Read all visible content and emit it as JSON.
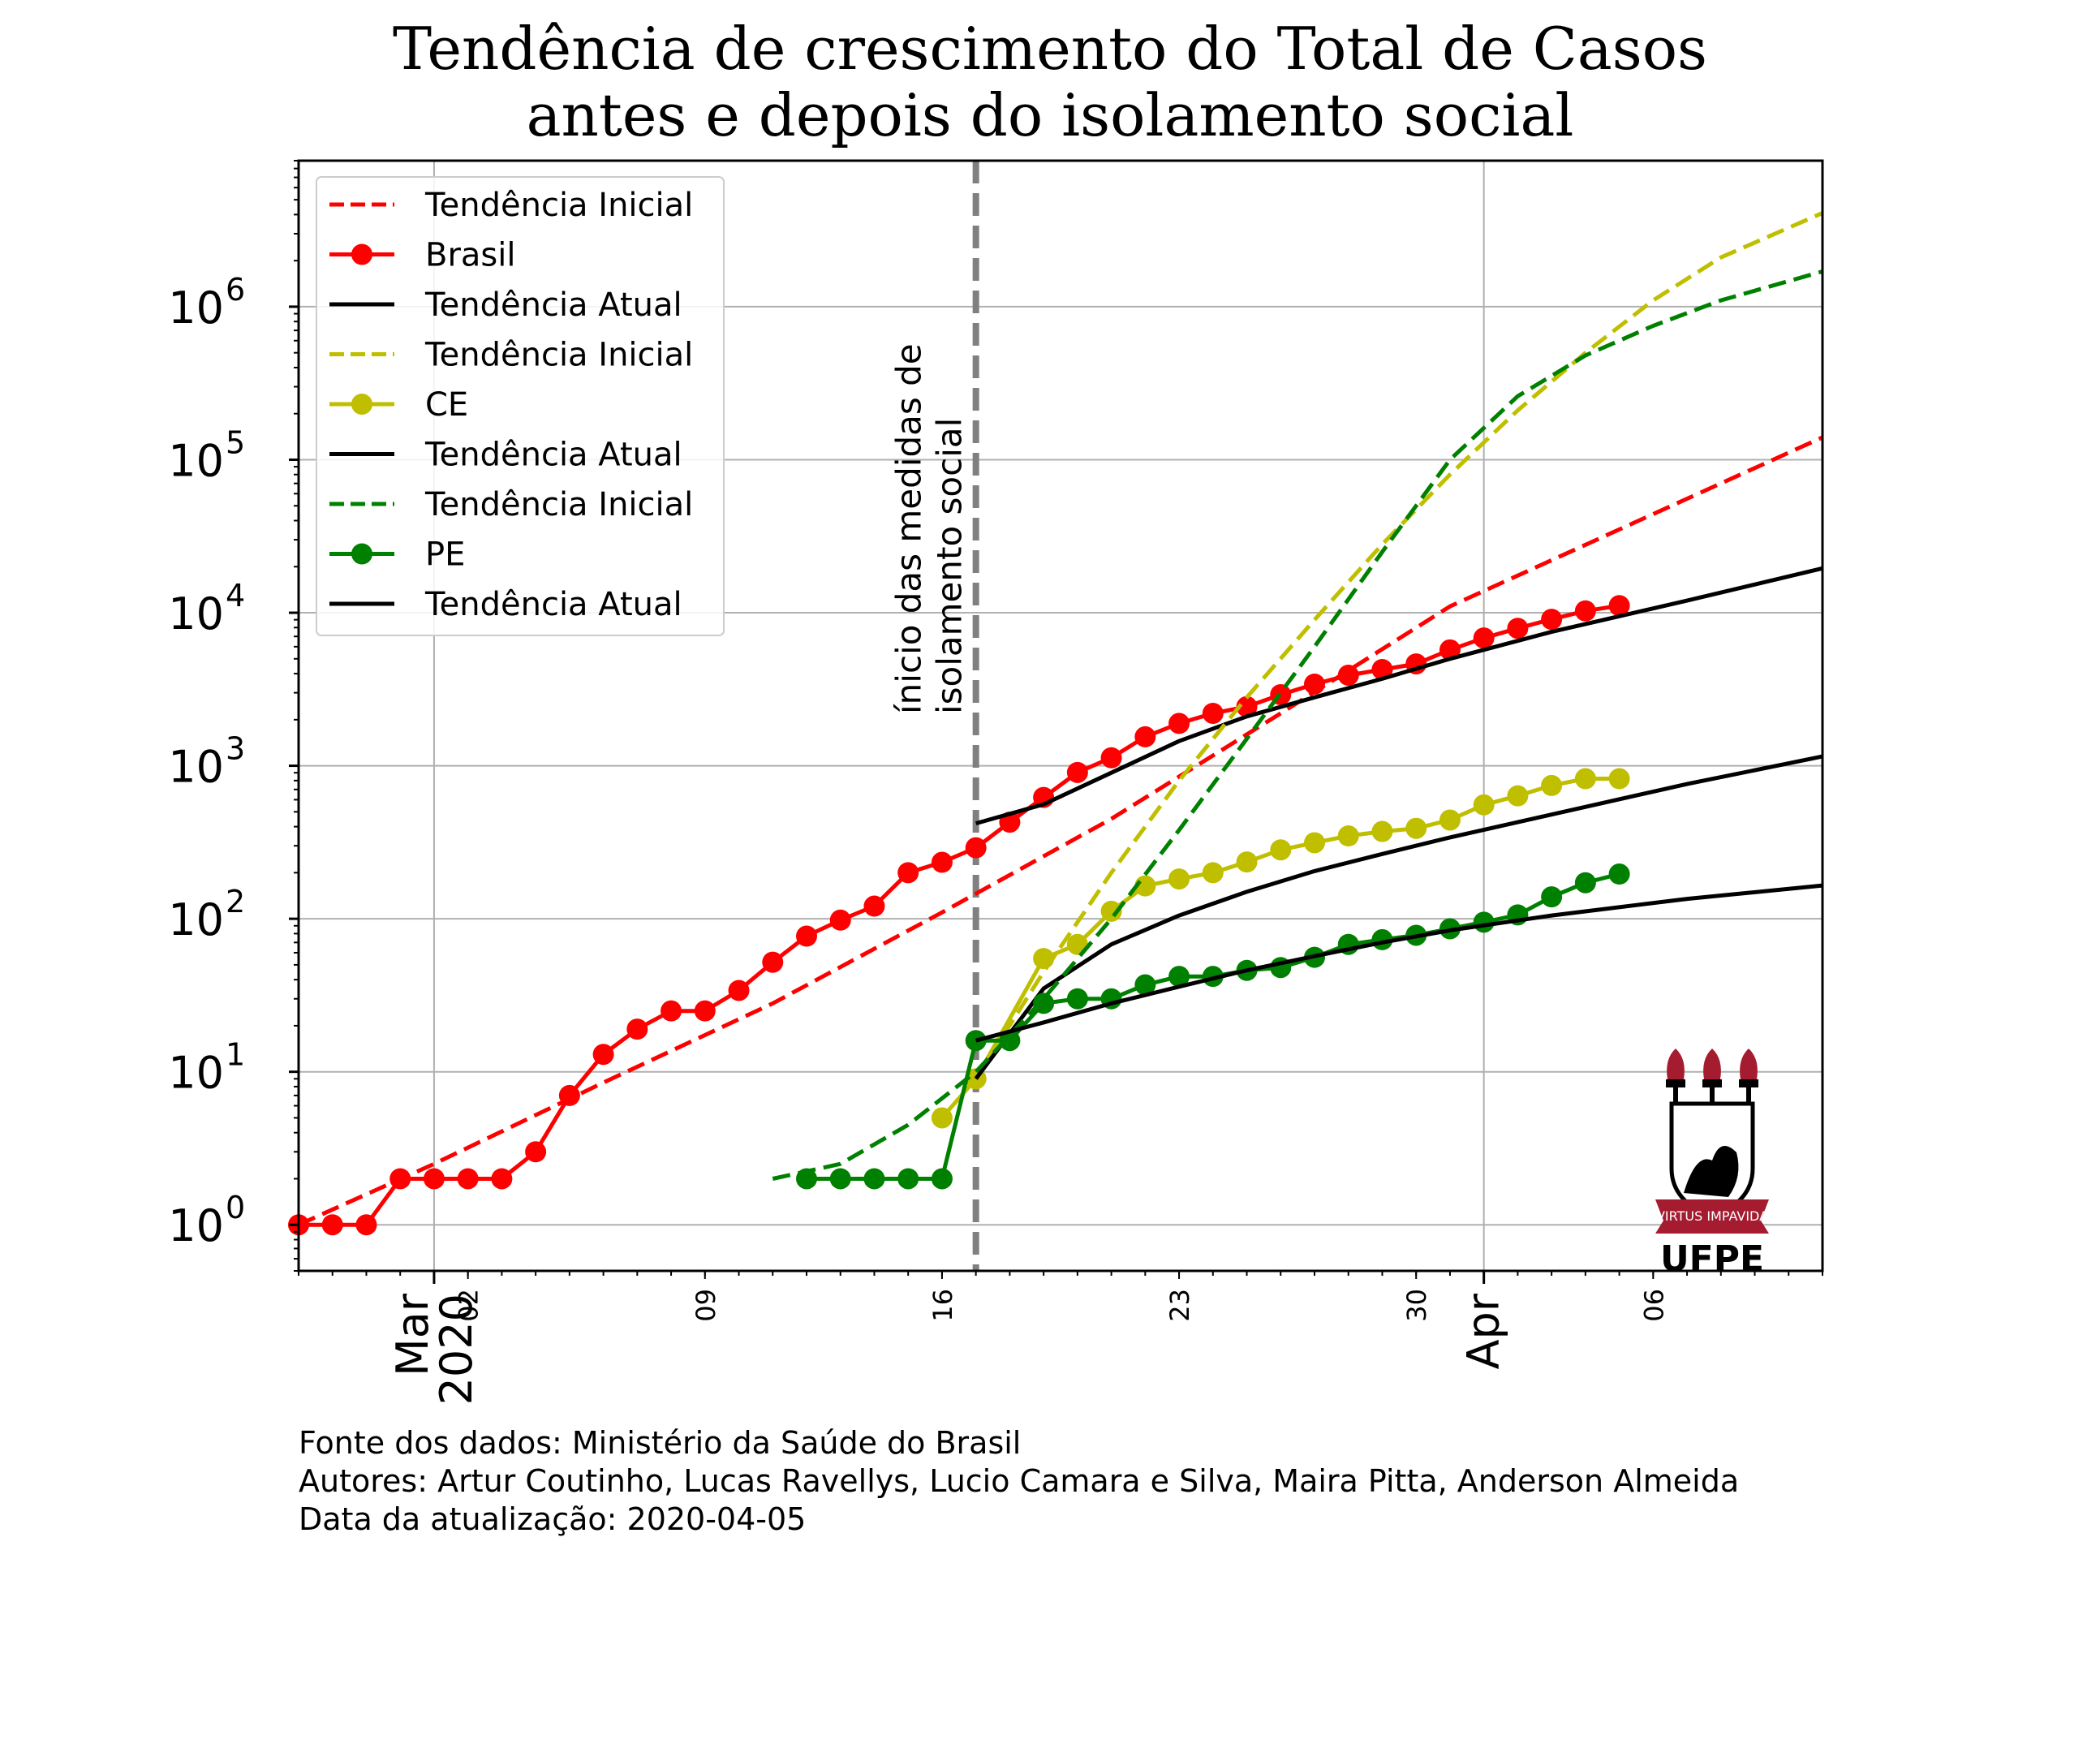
{
  "chart_data": {
    "type": "line",
    "title": [
      "Tendência de crescimento do Total de Casos",
      "antes e depois do isolamento social"
    ],
    "xlabel": "",
    "ylabel": "",
    "yscale": "log",
    "grid": true,
    "legend_placement": "top-left",
    "x_range": [
      "2020-02-26",
      "2020-04-11"
    ],
    "ylim": [
      0.5,
      9000000
    ],
    "y_ticks": [
      {
        "value": 1,
        "base": "10",
        "exp": "0"
      },
      {
        "value": 10,
        "base": "10",
        "exp": "1"
      },
      {
        "value": 100,
        "base": "10",
        "exp": "2"
      },
      {
        "value": 1000,
        "base": "10",
        "exp": "3"
      },
      {
        "value": 10000,
        "base": "10",
        "exp": "4"
      },
      {
        "value": 100000,
        "base": "10",
        "exp": "5"
      },
      {
        "value": 1000000,
        "base": "10",
        "exp": "6"
      }
    ],
    "x_ticks_minor": [
      {
        "date": "2020-03-02",
        "label": "02"
      },
      {
        "date": "2020-03-09",
        "label": "09"
      },
      {
        "date": "2020-03-16",
        "label": "16"
      },
      {
        "date": "2020-03-23",
        "label": "23"
      },
      {
        "date": "2020-03-30",
        "label": "30"
      },
      {
        "date": "2020-04-06",
        "label": "06"
      }
    ],
    "x_ticks_major": [
      {
        "date": "2020-03-01",
        "label": "Mar\n2020"
      },
      {
        "date": "2020-04-01",
        "label": "Apr"
      }
    ],
    "vline": {
      "date": "2020-03-17",
      "label": "ínicio das medidas de\nisolamento social",
      "color": "#808080"
    },
    "series": [
      {
        "name": "Tendência Inicial",
        "kind": "trend",
        "color": "#ff0000",
        "style": "dashed",
        "x": [
          "2020-02-26",
          "2020-03-01",
          "2020-03-06",
          "2020-03-11",
          "2020-03-16",
          "2020-03-21",
          "2020-03-26",
          "2020-03-31",
          "2020-04-05",
          "2020-04-11"
        ],
        "y": [
          1,
          2.5,
          8.5,
          28,
          110,
          450,
          2200,
          11000,
          35000,
          140000
        ]
      },
      {
        "name": "Brasil",
        "kind": "data",
        "color": "#ff0000",
        "style": "solid-marker",
        "x": [
          "2020-02-26",
          "2020-02-27",
          "2020-02-28",
          "2020-02-29",
          "2020-03-01",
          "2020-03-02",
          "2020-03-03",
          "2020-03-04",
          "2020-03-05",
          "2020-03-06",
          "2020-03-07",
          "2020-03-08",
          "2020-03-09",
          "2020-03-10",
          "2020-03-11",
          "2020-03-12",
          "2020-03-13",
          "2020-03-14",
          "2020-03-15",
          "2020-03-16",
          "2020-03-17",
          "2020-03-18",
          "2020-03-19",
          "2020-03-20",
          "2020-03-21",
          "2020-03-22",
          "2020-03-23",
          "2020-03-24",
          "2020-03-25",
          "2020-03-26",
          "2020-03-27",
          "2020-03-28",
          "2020-03-29",
          "2020-03-30",
          "2020-03-31",
          "2020-04-01",
          "2020-04-02",
          "2020-04-03",
          "2020-04-04",
          "2020-04-05"
        ],
        "y": [
          1,
          1,
          1,
          2,
          2,
          2,
          2,
          3,
          7,
          13,
          19,
          25,
          25,
          34,
          52,
          77,
          98,
          121,
          200,
          234,
          291,
          428,
          621,
          904,
          1128,
          1546,
          1891,
          2201,
          2433,
          2915,
          3417,
          3904,
          4256,
          4630,
          5717,
          6836,
          7910,
          9056,
          10278,
          11130
        ]
      },
      {
        "name": "Tendência Atual",
        "kind": "trend",
        "color": "#000000",
        "style": "solid",
        "x": [
          "2020-03-17",
          "2020-03-19",
          "2020-03-21",
          "2020-03-23",
          "2020-03-25",
          "2020-03-27",
          "2020-03-29",
          "2020-03-31",
          "2020-04-03",
          "2020-04-07",
          "2020-04-11"
        ],
        "y": [
          420,
          560,
          900,
          1450,
          2100,
          2800,
          3700,
          5000,
          7500,
          12000,
          19500
        ]
      },
      {
        "name": "Tendência Inicial",
        "kind": "trend",
        "color": "#bfbf00",
        "style": "dashed",
        "x": [
          "2020-03-17",
          "2020-03-19",
          "2020-03-21",
          "2020-03-23",
          "2020-03-25",
          "2020-03-27",
          "2020-03-29",
          "2020-03-31",
          "2020-04-02",
          "2020-04-04",
          "2020-04-06",
          "2020-04-08",
          "2020-04-11"
        ],
        "y": [
          9,
          45,
          200,
          800,
          2800,
          9000,
          28000,
          80000,
          210000,
          500000,
          1100000,
          2100000,
          4100000
        ]
      },
      {
        "name": "CE",
        "kind": "data",
        "color": "#bfbf00",
        "style": "solid-marker",
        "x": [
          "2020-03-16",
          "2020-03-17",
          "2020-03-19",
          "2020-03-20",
          "2020-03-21",
          "2020-03-22",
          "2020-03-23",
          "2020-03-24",
          "2020-03-25",
          "2020-03-26",
          "2020-03-27",
          "2020-03-28",
          "2020-03-29",
          "2020-03-30",
          "2020-03-31",
          "2020-04-01",
          "2020-04-02",
          "2020-04-03",
          "2020-04-04",
          "2020-04-05"
        ],
        "y": [
          5,
          9,
          55,
          68,
          112,
          164,
          182,
          200,
          235,
          282,
          314,
          348,
          372,
          390,
          442,
          555,
          636,
          743,
          823,
          823
        ]
      },
      {
        "name": "Tendência Atual",
        "kind": "trend",
        "color": "#000000",
        "style": "solid",
        "x": [
          "2020-03-17",
          "2020-03-19",
          "2020-03-21",
          "2020-03-23",
          "2020-03-25",
          "2020-03-27",
          "2020-03-29",
          "2020-03-31",
          "2020-04-03",
          "2020-04-07",
          "2020-04-11"
        ],
        "y": [
          9,
          35,
          68,
          105,
          150,
          205,
          265,
          340,
          480,
          760,
          1150
        ]
      },
      {
        "name": "Tendência Inicial",
        "kind": "trend",
        "color": "#008000",
        "style": "dashed",
        "x": [
          "2020-03-11",
          "2020-03-13",
          "2020-03-15",
          "2020-03-17",
          "2020-03-19",
          "2020-03-21",
          "2020-03-23",
          "2020-03-25",
          "2020-03-27",
          "2020-03-29",
          "2020-03-31",
          "2020-04-02",
          "2020-04-04",
          "2020-04-06",
          "2020-04-08",
          "2020-04-11"
        ],
        "y": [
          2,
          2.5,
          4.5,
          10,
          30,
          100,
          380,
          1500,
          6000,
          25000,
          100000,
          260000,
          480000,
          750000,
          1100000,
          1700000
        ]
      },
      {
        "name": "PE",
        "kind": "data",
        "color": "#008000",
        "style": "solid-marker",
        "x": [
          "2020-03-12",
          "2020-03-13",
          "2020-03-14",
          "2020-03-15",
          "2020-03-16",
          "2020-03-17",
          "2020-03-18",
          "2020-03-19",
          "2020-03-20",
          "2020-03-21",
          "2020-03-22",
          "2020-03-23",
          "2020-03-24",
          "2020-03-25",
          "2020-03-26",
          "2020-03-27",
          "2020-03-28",
          "2020-03-29",
          "2020-03-30",
          "2020-03-31",
          "2020-04-01",
          "2020-04-02",
          "2020-04-03",
          "2020-04-04",
          "2020-04-05"
        ],
        "y": [
          2,
          2,
          2,
          2,
          2,
          16,
          16,
          28,
          30,
          30,
          37,
          42,
          42,
          46,
          48,
          56,
          68,
          73,
          78,
          86,
          95,
          106,
          139,
          172,
          196
        ]
      },
      {
        "name": "Tendência Atual",
        "kind": "trend",
        "color": "#000000",
        "style": "solid",
        "x": [
          "2020-03-17",
          "2020-03-19",
          "2020-03-21",
          "2020-03-23",
          "2020-03-25",
          "2020-03-27",
          "2020-03-29",
          "2020-03-31",
          "2020-04-03",
          "2020-04-07",
          "2020-04-11"
        ],
        "y": [
          16,
          21,
          28,
          36,
          46,
          57,
          70,
          84,
          105,
          135,
          165
        ]
      }
    ],
    "legend": [
      {
        "label": "Tendência Inicial",
        "color": "#ff0000",
        "style": "dashed"
      },
      {
        "label": "Brasil",
        "color": "#ff0000",
        "style": "solid-marker"
      },
      {
        "label": "Tendência Atual",
        "color": "#000000",
        "style": "solid"
      },
      {
        "label": "Tendência Inicial",
        "color": "#bfbf00",
        "style": "dashed"
      },
      {
        "label": "CE",
        "color": "#bfbf00",
        "style": "solid-marker"
      },
      {
        "label": "Tendência Atual",
        "color": "#000000",
        "style": "solid"
      },
      {
        "label": "Tendência Inicial",
        "color": "#008000",
        "style": "dashed"
      },
      {
        "label": "PE",
        "color": "#008000",
        "style": "solid-marker"
      },
      {
        "label": "Tendência Atual",
        "color": "#000000",
        "style": "solid"
      }
    ]
  },
  "logo": {
    "motto": "VIRTUS IMPAVIDA",
    "name": "UFPE",
    "accent": "#a51c30"
  },
  "footer": {
    "source": "Fonte dos dados: Ministério da Saúde do Brasil",
    "authors": "Autores: Artur Coutinho, Lucas Ravellys, Lucio Camara e Silva, Maira Pitta, Anderson Almeida",
    "updated": "Data da atualização: 2020-04-05"
  }
}
